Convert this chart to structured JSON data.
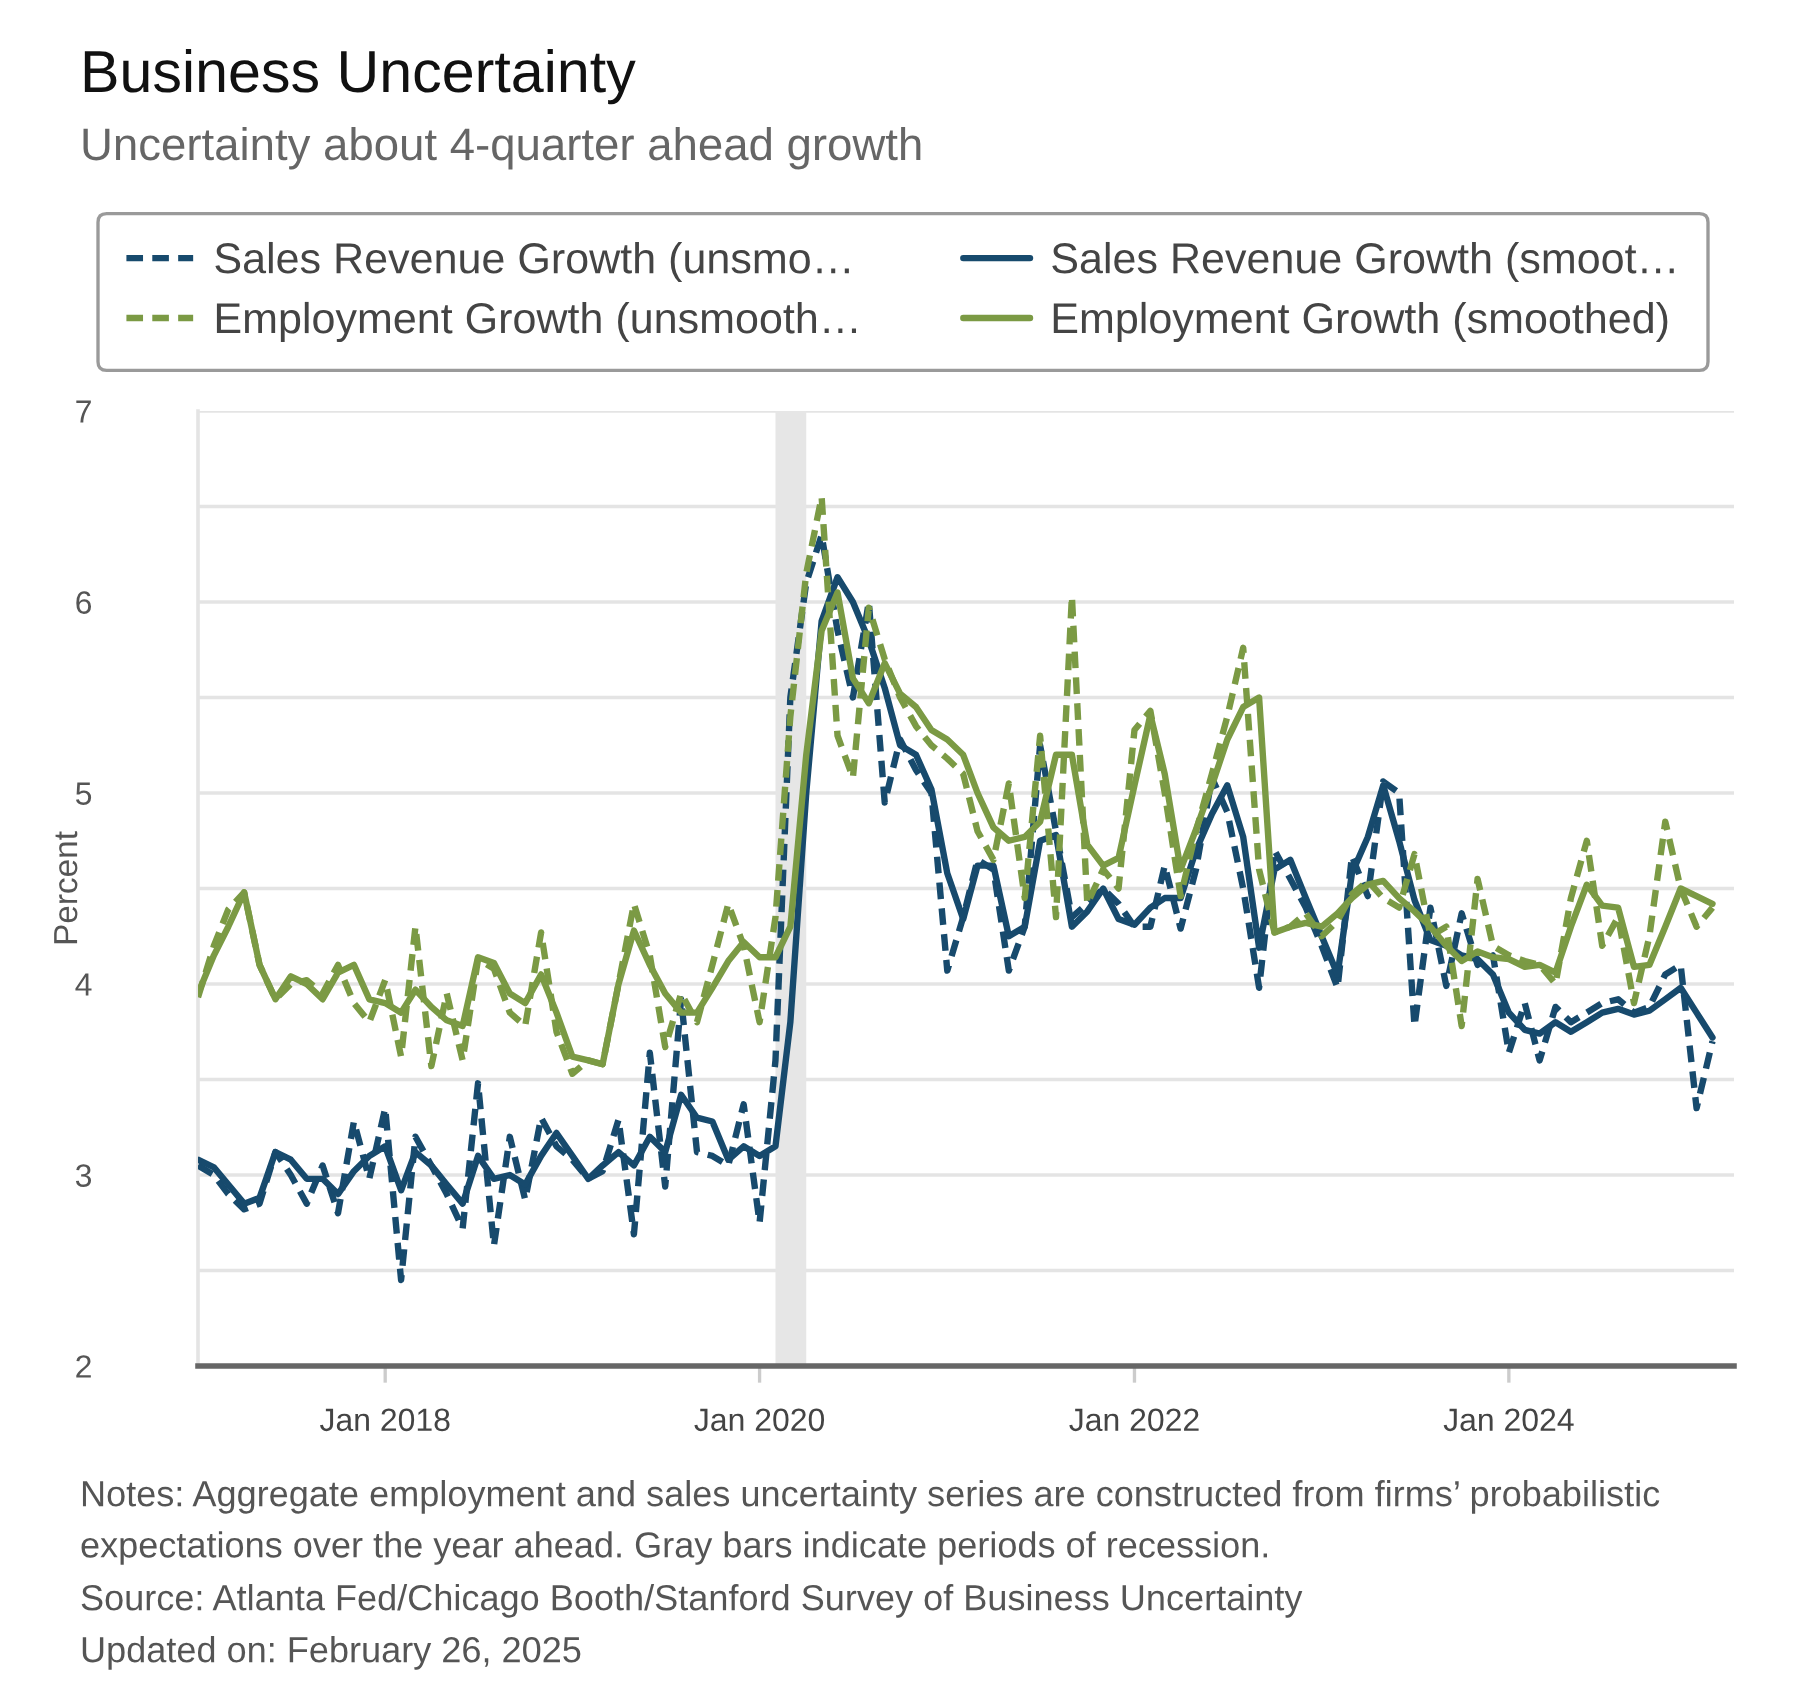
{
  "chart_data": {
    "type": "line",
    "title": "Business Uncertainty",
    "subtitle": "Uncertainty about 4-quarter ahead growth",
    "ylabel": "Percent",
    "annotations": [
      "Notes: Aggregate employment and sales uncertainty series are constructed from firms’ probabilistic expectations over the year ahead. Gray bars indicate periods of recession.",
      "Source: Atlanta Fed/Chicago Booth/Stanford Survey of Business Uncertainty",
      "Updated on: February 26, 2025"
    ],
    "x": [
      "2017-01",
      "2017-02",
      "2017-03",
      "2017-04",
      "2017-05",
      "2017-06",
      "2017-07",
      "2017-08",
      "2017-09",
      "2017-10",
      "2017-11",
      "2017-12",
      "2018-01",
      "2018-02",
      "2018-03",
      "2018-04",
      "2018-05",
      "2018-06",
      "2018-07",
      "2018-08",
      "2018-09",
      "2018-10",
      "2018-11",
      "2018-12",
      "2019-01",
      "2019-02",
      "2019-03",
      "2019-04",
      "2019-05",
      "2019-06",
      "2019-07",
      "2019-08",
      "2019-09",
      "2019-10",
      "2019-11",
      "2019-12",
      "2020-01",
      "2020-02",
      "2020-03",
      "2020-04",
      "2020-05",
      "2020-06",
      "2020-07",
      "2020-08",
      "2020-09",
      "2020-10",
      "2020-11",
      "2020-12",
      "2021-01",
      "2021-02",
      "2021-03",
      "2021-04",
      "2021-05",
      "2021-06",
      "2021-07",
      "2021-08",
      "2021-09",
      "2021-10",
      "2021-11",
      "2021-12",
      "2022-01",
      "2022-02",
      "2022-03",
      "2022-04",
      "2022-05",
      "2022-06",
      "2022-07",
      "2022-08",
      "2022-09",
      "2022-10",
      "2022-11",
      "2022-12",
      "2023-01",
      "2023-02",
      "2023-03",
      "2023-04",
      "2023-05",
      "2023-06",
      "2023-07",
      "2023-08",
      "2023-09",
      "2023-10",
      "2023-11",
      "2023-12",
      "2024-01",
      "2024-02",
      "2024-03",
      "2024-04",
      "2024-05",
      "2024-06",
      "2024-07",
      "2024-08",
      "2024-09",
      "2024-10",
      "2024-11",
      "2024-12",
      "2025-01",
      "2025-02"
    ],
    "series": [
      {
        "name": "Sales Revenue Growth (unsmo…",
        "color": "#174a6d",
        "line_style": "dashed",
        "values": [
          3.05,
          3.0,
          2.9,
          2.82,
          2.85,
          3.12,
          3.0,
          2.85,
          3.05,
          2.8,
          3.28,
          2.98,
          3.35,
          2.45,
          3.2,
          3.05,
          2.9,
          2.72,
          3.48,
          2.63,
          3.2,
          2.87,
          3.3,
          3.15,
          3.08,
          2.98,
          3.02,
          3.29,
          2.69,
          3.64,
          2.94,
          3.92,
          3.12,
          3.1,
          3.05,
          3.37,
          2.75,
          3.6,
          5.5,
          6.1,
          6.35,
          5.85,
          5.5,
          6.0,
          4.95,
          5.28,
          5.12,
          5.0,
          4.07,
          4.35,
          4.65,
          4.6,
          4.07,
          4.3,
          5.25,
          4.8,
          4.35,
          4.42,
          4.5,
          4.42,
          4.3,
          4.3,
          4.62,
          4.29,
          4.6,
          5.08,
          4.9,
          4.5,
          3.98,
          4.7,
          4.55,
          4.4,
          4.2,
          3.98,
          4.67,
          4.46,
          5.06,
          5.0,
          3.78,
          4.4,
          3.99,
          4.37,
          4.1,
          4.15,
          3.64,
          3.9,
          3.6,
          3.88,
          3.8,
          3.85,
          3.9,
          3.92,
          3.85,
          3.88,
          4.05,
          4.1,
          3.35,
          3.7
        ]
      },
      {
        "name": "Sales Revenue Growth (smoot…",
        "color": "#174a6d",
        "line_style": "solid",
        "values": [
          3.08,
          3.04,
          2.95,
          2.85,
          2.88,
          3.12,
          3.08,
          2.98,
          2.98,
          2.9,
          3.02,
          3.1,
          3.15,
          2.92,
          3.12,
          3.05,
          2.95,
          2.85,
          3.1,
          2.98,
          3.0,
          2.95,
          3.1,
          3.22,
          3.1,
          2.98,
          3.05,
          3.12,
          3.05,
          3.2,
          3.12,
          3.42,
          3.3,
          3.28,
          3.08,
          3.15,
          3.1,
          3.15,
          3.8,
          5.0,
          5.9,
          6.13,
          6.0,
          5.8,
          5.55,
          5.25,
          5.2,
          5.02,
          4.58,
          4.34,
          4.62,
          4.62,
          4.25,
          4.3,
          4.75,
          4.78,
          4.3,
          4.38,
          4.5,
          4.34,
          4.31,
          4.4,
          4.45,
          4.45,
          4.7,
          4.89,
          5.04,
          4.77,
          4.19,
          4.6,
          4.65,
          4.45,
          4.25,
          4.05,
          4.58,
          4.77,
          5.04,
          4.75,
          4.44,
          4.23,
          4.2,
          4.15,
          4.13,
          4.05,
          3.85,
          3.76,
          3.74,
          3.8,
          3.75,
          3.8,
          3.85,
          3.87,
          3.84,
          3.86,
          3.92,
          3.98,
          3.85,
          3.72
        ]
      },
      {
        "name": "Employment Growth (unsmooth…",
        "color": "#7b9a44",
        "line_style": "dashed",
        "values": [
          3.93,
          4.2,
          4.39,
          4.48,
          4.1,
          3.92,
          4.0,
          4.02,
          3.95,
          4.1,
          3.9,
          3.8,
          4.02,
          3.62,
          4.3,
          3.57,
          3.95,
          3.6,
          4.13,
          4.08,
          3.85,
          3.78,
          4.27,
          3.75,
          3.53,
          3.6,
          3.58,
          4.0,
          4.42,
          4.15,
          3.67,
          3.95,
          3.8,
          4.1,
          4.42,
          4.2,
          3.8,
          4.35,
          5.4,
          6.15,
          6.55,
          5.3,
          5.08,
          5.97,
          5.7,
          5.5,
          5.35,
          5.25,
          5.18,
          5.1,
          4.8,
          4.65,
          5.05,
          4.45,
          5.3,
          4.35,
          6.03,
          4.42,
          4.6,
          4.5,
          5.33,
          5.43,
          5.0,
          4.46,
          4.8,
          5.1,
          5.4,
          5.76,
          4.6,
          4.27,
          4.3,
          4.37,
          4.25,
          4.33,
          4.47,
          4.54,
          4.45,
          4.4,
          4.68,
          4.25,
          4.3,
          3.78,
          4.55,
          4.2,
          4.15,
          4.12,
          4.1,
          4.0,
          4.45,
          4.75,
          4.2,
          4.35,
          3.9,
          4.25,
          4.85,
          4.5,
          4.3,
          4.4
        ]
      },
      {
        "name": "Employment Growth (smoothed)",
        "color": "#7b9a44",
        "line_style": "solid",
        "values": [
          3.95,
          4.15,
          4.3,
          4.48,
          4.1,
          3.92,
          4.04,
          4.0,
          3.92,
          4.06,
          4.1,
          3.92,
          3.9,
          3.85,
          3.97,
          3.88,
          3.81,
          3.78,
          4.14,
          4.11,
          3.95,
          3.9,
          4.05,
          3.85,
          3.62,
          3.6,
          3.58,
          4.0,
          4.28,
          4.1,
          3.95,
          3.85,
          3.85,
          3.98,
          4.12,
          4.22,
          4.14,
          4.14,
          4.3,
          5.2,
          5.85,
          6.05,
          5.6,
          5.47,
          5.68,
          5.52,
          5.45,
          5.33,
          5.28,
          5.2,
          5.0,
          4.82,
          4.75,
          4.77,
          4.85,
          5.2,
          5.2,
          4.73,
          4.62,
          4.66,
          5.04,
          5.41,
          5.1,
          4.6,
          4.81,
          5.04,
          5.28,
          5.45,
          5.5,
          4.27,
          4.3,
          4.32,
          4.3,
          4.37,
          4.45,
          4.52,
          4.54,
          4.45,
          4.38,
          4.3,
          4.2,
          4.12,
          4.17,
          4.14,
          4.13,
          4.09,
          4.1,
          4.06,
          4.3,
          4.52,
          4.41,
          4.4,
          4.09,
          4.1,
          4.3,
          4.5,
          4.46,
          4.42
        ]
      }
    ],
    "xlim": [
      "2017-01",
      "2025-03-15"
    ],
    "xticks": [
      {
        "value": "2018-01",
        "label": "Jan 2018"
      },
      {
        "value": "2020-01",
        "label": "Jan 2020"
      },
      {
        "value": "2022-01",
        "label": "Jan 2022"
      },
      {
        "value": "2024-01",
        "label": "Jan 2024"
      }
    ],
    "ylim": [
      2,
      7
    ],
    "yticks": [
      2,
      {
        "value": 2.5,
        "label": null
      },
      3,
      {
        "value": 3.5,
        "label": null
      },
      4,
      {
        "value": 4.5,
        "label": null
      },
      5,
      {
        "value": 5.5,
        "label": null
      },
      6,
      {
        "value": 6.5,
        "label": null
      },
      7
    ],
    "bands": [
      {
        "axis": "x",
        "from": "2020-02",
        "to": "2020-04",
        "color": "#e6e6e6"
      }
    ],
    "grid": "y",
    "legend": "top"
  }
}
